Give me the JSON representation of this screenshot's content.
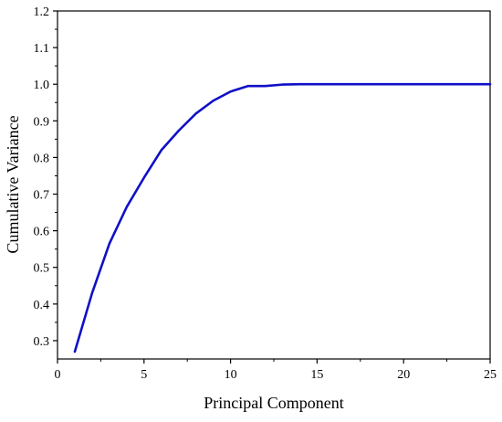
{
  "chart_data": {
    "type": "line",
    "xlabel": "Principal Component",
    "ylabel": "Cumulative Variance",
    "xlim": [
      0,
      25
    ],
    "ylim": [
      0.25,
      1.2
    ],
    "x_ticks": [
      0,
      5,
      10,
      15,
      20,
      25
    ],
    "y_ticks": [
      0.3,
      0.4,
      0.5,
      0.6,
      0.7,
      0.8,
      0.9,
      1.0,
      1.1,
      1.2
    ],
    "x_tick_labels": [
      "0",
      "5",
      "10",
      "15",
      "20",
      "25"
    ],
    "y_tick_labels": [
      "0.3",
      "0.4",
      "0.5",
      "0.6",
      "0.7",
      "0.8",
      "0.9",
      "1.0",
      "1.1",
      "1.2"
    ],
    "grid": false,
    "line_color": "#1010c8",
    "series": [
      {
        "x": [
          1,
          2,
          3,
          4,
          5,
          6,
          7,
          8,
          9,
          10,
          11,
          12,
          13,
          14,
          15,
          16,
          17,
          18,
          19,
          20,
          21,
          22,
          23,
          24,
          25
        ],
        "values": [
          0.27,
          0.43,
          0.565,
          0.665,
          0.745,
          0.82,
          0.873,
          0.92,
          0.955,
          0.98,
          0.995,
          0.995,
          0.999,
          1.0,
          1.0,
          1.0,
          1.0,
          1.0,
          1.0,
          1.0,
          1.0,
          1.0,
          1.0,
          1.0,
          1.0
        ]
      }
    ]
  }
}
